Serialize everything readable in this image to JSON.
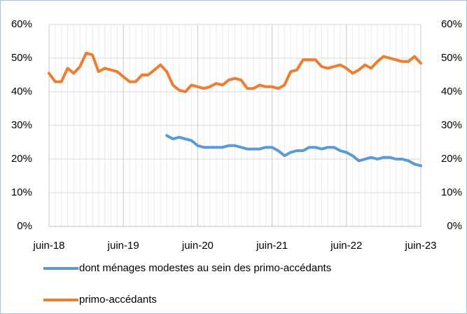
{
  "chart_data": {
    "type": "line",
    "categories": [
      "juin-18",
      null,
      null,
      null,
      null,
      null,
      null,
      null,
      null,
      null,
      null,
      null,
      "juin-19",
      null,
      null,
      null,
      null,
      null,
      null,
      null,
      null,
      null,
      null,
      null,
      "juin-20",
      null,
      null,
      null,
      null,
      null,
      null,
      null,
      null,
      null,
      null,
      null,
      "juin-21",
      null,
      null,
      null,
      null,
      null,
      null,
      null,
      null,
      null,
      null,
      null,
      "juin-22",
      null,
      null,
      null,
      null,
      null,
      null,
      null,
      null,
      null,
      null,
      null,
      "juin-23"
    ],
    "series": [
      {
        "name": "dont ménages modestes au sein des primo-accédants",
        "color": "#5b9bd5",
        "values": [
          null,
          null,
          null,
          null,
          null,
          null,
          null,
          null,
          null,
          null,
          null,
          null,
          null,
          null,
          null,
          null,
          null,
          null,
          null,
          27,
          26,
          26.5,
          26,
          25.5,
          24,
          23.5,
          23.5,
          23.5,
          23.5,
          24,
          24,
          23.5,
          23,
          23,
          23,
          23.5,
          23.5,
          22.5,
          21,
          22,
          22.5,
          22.5,
          23.5,
          23.5,
          23,
          23.5,
          23.5,
          22.5,
          22,
          21,
          19.5,
          20,
          20.5,
          20,
          20.5,
          20.5,
          20,
          20,
          19.5,
          18.5,
          18
        ]
      },
      {
        "name": "primo-accédants",
        "color": "#ed7d31",
        "values": [
          45.5,
          43,
          43,
          47,
          45.5,
          47.5,
          51.5,
          51,
          46,
          47,
          46.5,
          46,
          44.5,
          43,
          43,
          45,
          45,
          46.5,
          48,
          46,
          42,
          40.5,
          40,
          42,
          41.5,
          41,
          41.5,
          42.5,
          42,
          43.5,
          44,
          43.5,
          41,
          41,
          42,
          41.5,
          41.5,
          41,
          42,
          46,
          46.5,
          49.5,
          49.5,
          49.5,
          47.5,
          47,
          47.5,
          48,
          47,
          45.5,
          46.5,
          48,
          47,
          49,
          50.5,
          50,
          49.5,
          49,
          49,
          50.5,
          48.5
        ]
      }
    ],
    "ylim": [
      0,
      60
    ],
    "yticks": [
      {
        "value": 0,
        "label": "0%"
      },
      {
        "value": 10,
        "label": "10%"
      },
      {
        "value": 20,
        "label": "20%"
      },
      {
        "value": 30,
        "label": "30%"
      },
      {
        "value": 40,
        "label": "40%"
      },
      {
        "value": 50,
        "label": "50%"
      },
      {
        "value": 60,
        "label": "60%"
      }
    ],
    "y2lim": [
      0,
      60
    ],
    "y2ticks": [
      {
        "value": 0,
        "label": "0%"
      },
      {
        "value": 10,
        "label": "10%"
      },
      {
        "value": 20,
        "label": "20%"
      },
      {
        "value": 30,
        "label": "30%"
      },
      {
        "value": 40,
        "label": "40%"
      },
      {
        "value": 50,
        "label": "50%"
      },
      {
        "value": 60,
        "label": "60%"
      }
    ],
    "grid": true,
    "legend": "bottom"
  }
}
